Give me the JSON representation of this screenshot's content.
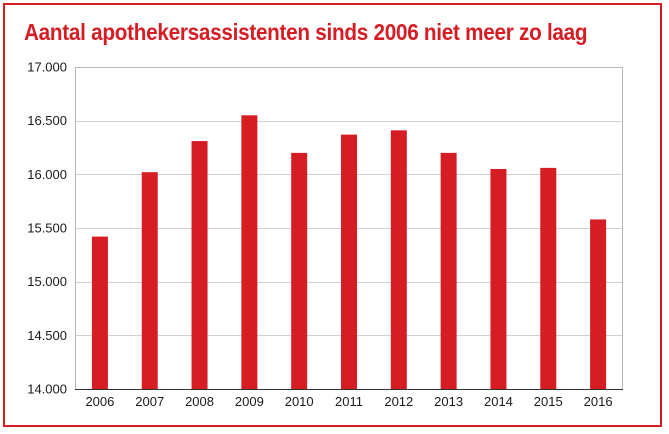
{
  "chart_data": {
    "type": "bar",
    "title": "Aantal apothekersassistenten sinds 2006 niet meer zo laag",
    "xlabel": "",
    "ylabel": "",
    "categories": [
      "2006",
      "2007",
      "2008",
      "2009",
      "2010",
      "2011",
      "2012",
      "2013",
      "2014",
      "2015",
      "2016"
    ],
    "values": [
      15420,
      16020,
      16310,
      16550,
      16200,
      16370,
      16410,
      16200,
      16050,
      16060,
      15580
    ],
    "ylim": [
      14000,
      17000
    ],
    "yticks": [
      14000,
      14500,
      15000,
      15500,
      16000,
      16500,
      17000
    ],
    "ytick_labels": [
      "14.000",
      "14.500",
      "15.000",
      "15.500",
      "16.000",
      "16.500",
      "17.000"
    ],
    "grid": true,
    "legend": "none",
    "colors": {
      "bar": "#d71d24",
      "title": "#d71d24",
      "frame": "#d71d24",
      "grid": "#d0d0d0"
    }
  }
}
